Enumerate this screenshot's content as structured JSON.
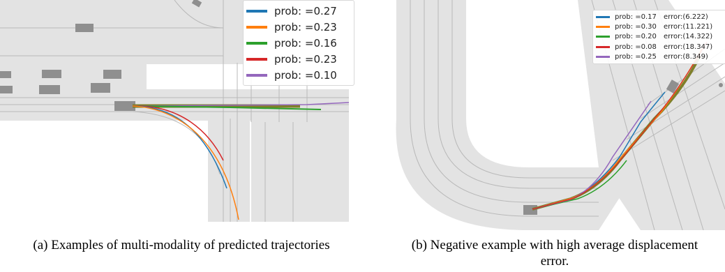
{
  "panel_a": {
    "caption": "(a) Examples of multi-modality of predicted trajectories",
    "legend": [
      {
        "label": "prob: =0.27",
        "color": "#1f77b4"
      },
      {
        "label": "prob: =0.23",
        "color": "#ff7f0e"
      },
      {
        "label": "prob: =0.16",
        "color": "#2ca02c"
      },
      {
        "label": "prob: =0.23",
        "color": "#d62728"
      },
      {
        "label": "prob: =0.10",
        "color": "#9467bd"
      }
    ]
  },
  "panel_b": {
    "caption": "(b) Negative example with high average displacement error.",
    "legend": [
      {
        "label": "prob: =0.17",
        "error": "error:(6.222)",
        "color": "#1f77b4"
      },
      {
        "label": "prob: =0.30",
        "error": "error:(11.221)",
        "color": "#ff7f0e"
      },
      {
        "label": "prob: =0.20",
        "error": "error:(14.322)",
        "color": "#2ca02c"
      },
      {
        "label": "prob: =0.08",
        "error": "error:(18.347)",
        "color": "#d62728"
      },
      {
        "label": "prob: =0.25",
        "error": "error:(8.349)",
        "color": "#9467bd"
      }
    ]
  },
  "colors": {
    "road": "#e3e3e3",
    "lane_line": "#b8b8b8",
    "vehicle": "#8f8f8f",
    "ground_truth": "#7f7f2a"
  }
}
